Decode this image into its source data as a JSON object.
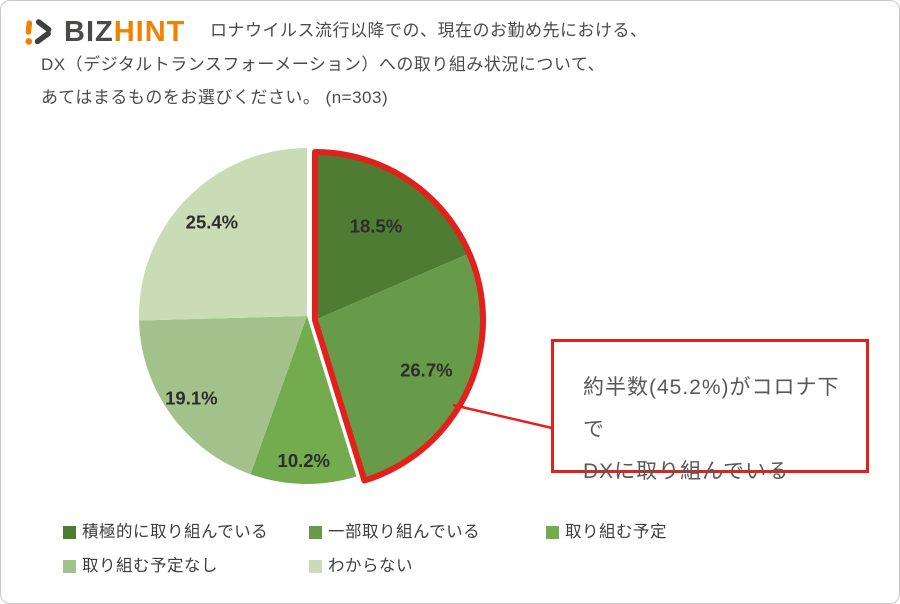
{
  "brand": {
    "name": "BIZHINT",
    "part1": "BIZ",
    "part2": "HINT",
    "icon": "bizhint-logo-mark",
    "accent_color": "#ef8200",
    "dark_color": "#4a4a48"
  },
  "question": {
    "lines": [
      "ロナウイルス流行以降での、現在のお勤め先における、",
      "DX（デジタルトランスフォーメーション）への取り組み状況について、",
      "あてはまるものをお選びください。 (n=303)"
    ],
    "sample_size": "n=303"
  },
  "chart_data": {
    "type": "pie",
    "unit": "%",
    "start_angle_deg": 0,
    "direction": "clockwise",
    "legend_position": "bottom",
    "slices": [
      {
        "label": "積極的に取り組んでいる",
        "value": 18.5,
        "color": "#4e7c33",
        "highlighted": true
      },
      {
        "label": "一部取り組んでいる",
        "value": 26.7,
        "color": "#689b49",
        "highlighted": true
      },
      {
        "label": "取り組む予定",
        "value": 10.2,
        "color": "#73ab4f",
        "highlighted": false
      },
      {
        "label": "取り組む予定なし",
        "value": 19.1,
        "color": "#a3c18b",
        "highlighted": false
      },
      {
        "label": "わからない",
        "value": 25.4,
        "color": "#c9dcb6",
        "highlighted": false
      }
    ],
    "highlight": {
      "color": "#e2211c",
      "total": 45.2,
      "note": "18.5% + 26.7% outlined in red and offset"
    }
  },
  "callout": {
    "line1": "約半数(45.2%)がコロナ下で",
    "line2": "DXに取り組んでいる",
    "border_color": "#e2211c"
  }
}
